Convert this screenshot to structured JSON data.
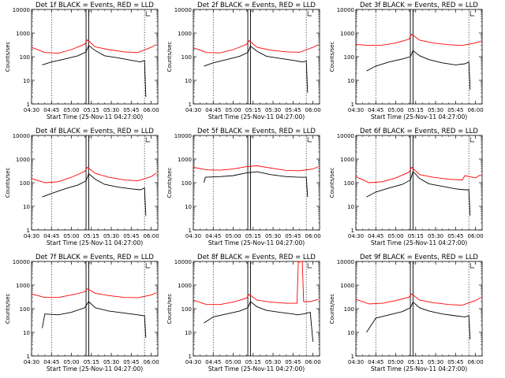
{
  "chart_data": [
    {
      "type": "line",
      "title": "Det 1f BLACK = Events, RED = LLD",
      "xlabel": "Start Time (25-Nov-11 04:27:00)",
      "ylabel": "Counts/sec",
      "xticks": [
        "04:30",
        "04:45",
        "05:00",
        "05:15",
        "05:30",
        "05:45",
        "06:00"
      ],
      "yticks": [
        "1",
        "10",
        "100",
        "1000",
        "10000"
      ],
      "yscale": "log",
      "ylim": [
        1,
        10000
      ],
      "xlim_minutes": [
        270,
        365
      ],
      "series": [
        {
          "color": "#ff0000",
          "x": [
            270,
            280,
            290,
            300,
            310,
            312,
            318,
            328,
            340,
            350,
            360,
            364
          ],
          "y": [
            250,
            150,
            140,
            200,
            340,
            520,
            260,
            200,
            160,
            150,
            250,
            330
          ]
        },
        {
          "color": "#000000",
          "x": [
            278,
            285,
            295,
            305,
            311,
            313,
            318,
            325,
            335,
            345,
            352,
            355,
            356
          ],
          "y": [
            45,
            60,
            80,
            110,
            160,
            300,
            180,
            110,
            90,
            70,
            60,
            70,
            2
          ]
        }
      ]
    },
    {
      "type": "line",
      "title": "Det 2f BLACK = Events, RED = LLD",
      "xlabel": "Start Time (25-Nov-11 04:27:00)",
      "ylabel": "Counts/sec",
      "xticks": [
        "04:30",
        "04:45",
        "05:00",
        "05:15",
        "05:30",
        "05:45",
        "06:00"
      ],
      "yticks": [
        "1",
        "10",
        "100",
        "1000",
        "10000"
      ],
      "yscale": "log",
      "ylim": [
        1,
        10000
      ],
      "xlim_minutes": [
        270,
        365
      ],
      "series": [
        {
          "color": "#ff0000",
          "x": [
            270,
            280,
            290,
            300,
            310,
            312,
            318,
            328,
            340,
            350,
            360,
            364
          ],
          "y": [
            240,
            150,
            145,
            200,
            330,
            480,
            250,
            190,
            160,
            155,
            250,
            320
          ]
        },
        {
          "color": "#000000",
          "x": [
            278,
            285,
            295,
            305,
            311,
            313,
            318,
            325,
            335,
            345,
            352,
            355,
            356
          ],
          "y": [
            40,
            55,
            75,
            105,
            150,
            280,
            170,
            105,
            85,
            70,
            60,
            65,
            3
          ]
        }
      ]
    },
    {
      "type": "line",
      "title": "Det 3f BLACK = Events, RED = LLD",
      "xlabel": "Start Time (25-Nov-11 04:27:00)",
      "ylabel": "Counts/sec",
      "xticks": [
        "04:30",
        "04:45",
        "05:00",
        "05:15",
        "05:30",
        "05:45",
        "06:00"
      ],
      "yticks": [
        "1",
        "10",
        "100",
        "1000",
        "10000"
      ],
      "yscale": "log",
      "ylim": [
        1,
        10000
      ],
      "xlim_minutes": [
        270,
        365
      ],
      "series": [
        {
          "color": "#ff0000",
          "x": [
            270,
            280,
            290,
            300,
            310,
            312,
            318,
            328,
            340,
            350,
            360,
            364
          ],
          "y": [
            330,
            300,
            310,
            380,
            550,
            900,
            500,
            380,
            320,
            300,
            380,
            450
          ]
        },
        {
          "color": "#000000",
          "x": [
            278,
            285,
            295,
            305,
            311,
            313,
            318,
            325,
            335,
            345,
            352,
            355,
            356
          ],
          "y": [
            25,
            40,
            60,
            80,
            100,
            180,
            110,
            75,
            55,
            45,
            50,
            60,
            4
          ]
        }
      ]
    },
    {
      "type": "line",
      "title": "Det 4f BLACK = Events, RED = LLD",
      "xlabel": "Start Time (25-Nov-11 04:27:00)",
      "ylabel": "Counts/sec",
      "xticks": [
        "04:30",
        "04:45",
        "05:00",
        "05:15",
        "05:30",
        "05:45",
        "06:00"
      ],
      "yticks": [
        "1",
        "10",
        "100",
        "1000",
        "10000"
      ],
      "yscale": "log",
      "ylim": [
        1,
        10000
      ],
      "xlim_minutes": [
        270,
        365
      ],
      "series": [
        {
          "color": "#ff0000",
          "x": [
            270,
            280,
            290,
            300,
            310,
            312,
            318,
            328,
            340,
            350,
            360,
            364
          ],
          "y": [
            150,
            100,
            110,
            170,
            300,
            450,
            250,
            170,
            130,
            120,
            180,
            260
          ]
        },
        {
          "color": "#000000",
          "x": [
            278,
            285,
            295,
            305,
            311,
            313,
            318,
            325,
            335,
            345,
            352,
            355,
            356
          ],
          "y": [
            25,
            35,
            55,
            80,
            120,
            240,
            140,
            85,
            65,
            55,
            50,
            60,
            4
          ]
        }
      ]
    },
    {
      "type": "line",
      "title": "Det 5f BLACK = Events, RED = LLD",
      "xlabel": "Start Time (25-Nov-11 04:27:00)",
      "ylabel": "Counts/sec",
      "xticks": [
        "04:30",
        "04:45",
        "05:00",
        "05:15",
        "05:30",
        "05:45",
        "06:00"
      ],
      "yticks": [
        "1",
        "10",
        "100",
        "1000",
        "10000"
      ],
      "yscale": "log",
      "ylim": [
        1,
        10000
      ],
      "xlim_minutes": [
        270,
        365
      ],
      "series": [
        {
          "color": "#ff0000",
          "x": [
            270,
            280,
            290,
            300,
            310,
            318,
            328,
            340,
            350,
            360,
            364
          ],
          "y": [
            450,
            350,
            340,
            380,
            480,
            520,
            420,
            330,
            320,
            380,
            480
          ]
        },
        {
          "color": "#000000",
          "x": [
            278,
            279,
            290,
            300,
            310,
            318,
            328,
            340,
            350,
            355,
            356
          ],
          "y": [
            100,
            170,
            180,
            200,
            260,
            290,
            220,
            180,
            170,
            170,
            25
          ]
        }
      ]
    },
    {
      "type": "line",
      "title": "Det 6f BLACK = Events, RED = LLD",
      "xlabel": "Start Time (25-Nov-11 04:27:00)",
      "ylabel": "Counts/sec",
      "xticks": [
        "04:30",
        "04:45",
        "05:00",
        "05:15",
        "05:30",
        "05:45",
        "06:00"
      ],
      "yticks": [
        "1",
        "10",
        "100",
        "1000",
        "10000"
      ],
      "yscale": "log",
      "ylim": [
        1,
        10000
      ],
      "xlim_minutes": [
        270,
        365
      ],
      "series": [
        {
          "color": "#ff0000",
          "x": [
            270,
            280,
            290,
            300,
            310,
            312,
            318,
            328,
            340,
            350,
            352,
            360,
            364
          ],
          "y": [
            180,
            100,
            110,
            160,
            280,
            450,
            220,
            170,
            140,
            130,
            200,
            160,
            220
          ]
        },
        {
          "color": "#000000",
          "x": [
            278,
            285,
            295,
            305,
            311,
            313,
            318,
            325,
            335,
            345,
            352,
            355,
            356
          ],
          "y": [
            25,
            40,
            60,
            85,
            130,
            300,
            150,
            90,
            70,
            55,
            50,
            50,
            4
          ]
        }
      ]
    },
    {
      "type": "line",
      "title": "Det 7f BLACK = Events, RED = LLD",
      "xlabel": "Start Time (25-Nov-11 04:27:00)",
      "ylabel": "Counts/sec",
      "xticks": [
        "04:30",
        "04:45",
        "05:00",
        "05:15",
        "05:30",
        "05:45",
        "06:00"
      ],
      "yticks": [
        "1",
        "10",
        "100",
        "1000",
        "10000"
      ],
      "yscale": "log",
      "ylim": [
        1,
        10000
      ],
      "xlim_minutes": [
        270,
        365
      ],
      "series": [
        {
          "color": "#ff0000",
          "x": [
            270,
            280,
            290,
            300,
            310,
            312,
            318,
            328,
            340,
            350,
            360,
            364
          ],
          "y": [
            420,
            300,
            300,
            380,
            520,
            700,
            450,
            360,
            300,
            290,
            380,
            480
          ]
        },
        {
          "color": "#000000",
          "x": [
            278,
            280,
            290,
            300,
            310,
            313,
            318,
            328,
            340,
            350,
            355,
            356
          ],
          "y": [
            15,
            60,
            55,
            70,
            110,
            200,
            110,
            80,
            65,
            55,
            50,
            6
          ]
        }
      ]
    },
    {
      "type": "line",
      "title": "Det 8f BLACK = Events, RED = LLD",
      "xlabel": "Start Time (25-Nov-11 04:27:00)",
      "ylabel": "Counts/sec",
      "xticks": [
        "04:30",
        "04:45",
        "05:00",
        "05:15",
        "05:30",
        "05:45",
        "06:00"
      ],
      "yticks": [
        "1",
        "10",
        "100",
        "1000",
        "10000"
      ],
      "yscale": "log",
      "ylim": [
        1,
        10000
      ],
      "xlim_minutes": [
        270,
        365
      ],
      "series": [
        {
          "color": "#ff0000",
          "x": [
            270,
            280,
            290,
            300,
            310,
            312,
            318,
            328,
            340,
            348,
            349,
            352,
            353,
            358,
            364
          ],
          "y": [
            230,
            150,
            150,
            190,
            280,
            400,
            230,
            190,
            170,
            170,
            10000,
            10000,
            200,
            200,
            250
          ]
        },
        {
          "color": "#000000",
          "x": [
            278,
            285,
            295,
            305,
            311,
            313,
            318,
            325,
            335,
            345,
            348,
            353,
            358,
            360
          ],
          "y": [
            25,
            45,
            60,
            80,
            110,
            200,
            120,
            85,
            70,
            60,
            55,
            60,
            70,
            4
          ]
        }
      ]
    },
    {
      "type": "line",
      "title": "Det 9f BLACK = Events, RED = LLD",
      "xlabel": "Start Time (25-Nov-11 04:27:00)",
      "ylabel": "Counts/sec",
      "xticks": [
        "04:30",
        "04:45",
        "05:00",
        "05:15",
        "05:30",
        "05:45",
        "06:00"
      ],
      "yticks": [
        "1",
        "10",
        "100",
        "1000",
        "10000"
      ],
      "yscale": "log",
      "ylim": [
        1,
        10000
      ],
      "xlim_minutes": [
        270,
        365
      ],
      "series": [
        {
          "color": "#ff0000",
          "x": [
            270,
            280,
            290,
            300,
            310,
            312,
            318,
            328,
            340,
            350,
            360,
            364
          ],
          "y": [
            250,
            160,
            170,
            220,
            310,
            420,
            230,
            180,
            150,
            140,
            220,
            300
          ]
        },
        {
          "color": "#000000",
          "x": [
            278,
            285,
            295,
            305,
            311,
            313,
            318,
            325,
            335,
            345,
            352,
            355,
            356
          ],
          "y": [
            10,
            40,
            55,
            75,
            110,
            190,
            110,
            80,
            60,
            50,
            45,
            50,
            5
          ]
        }
      ]
    }
  ]
}
